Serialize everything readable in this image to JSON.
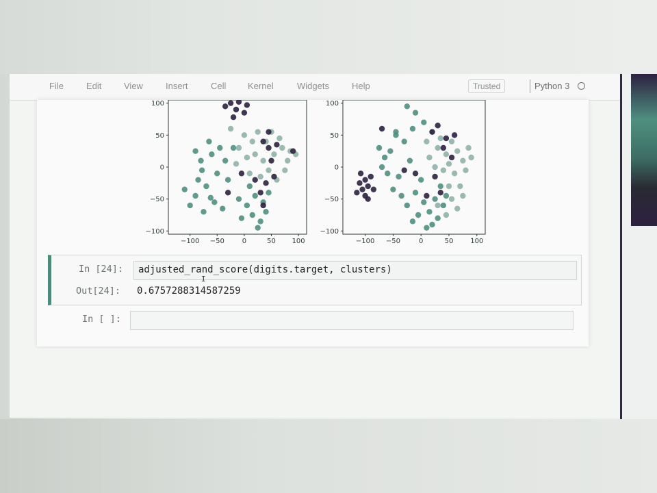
{
  "menubar": {
    "items": [
      "File",
      "Edit",
      "View",
      "Insert",
      "Cell",
      "Kernel",
      "Widgets",
      "Help"
    ],
    "trusted": "Trusted",
    "kernel": "Python 3"
  },
  "plots": {
    "y_ticks": [
      "100",
      "50",
      "0",
      "−50",
      "−100"
    ],
    "x_ticks": [
      "−100",
      "−50",
      "0",
      "50",
      "100"
    ],
    "colors": {
      "teal": "#4f8f80",
      "light": "#8fb3a8",
      "dark": "#2c2140"
    }
  },
  "cell_24": {
    "in_prompt": "In [24]:",
    "code": "adjusted_rand_score(digits.target, clusters)",
    "out_prompt": "Out[24]:",
    "output": "0.6757288314587259"
  },
  "cell_empty": {
    "in_prompt": "In [ ]:"
  },
  "chart_data": [
    {
      "type": "scatter",
      "title": "",
      "xlabel": "",
      "ylabel": "",
      "xlim": [
        -140,
        115
      ],
      "ylim": [
        -105,
        105
      ],
      "grid": false,
      "series": [
        {
          "color": "#4f8f80",
          "points": [
            [
              -90,
              -45
            ],
            [
              -85,
              -20
            ],
            [
              -80,
              10
            ],
            [
              -70,
              -30
            ],
            [
              -60,
              20
            ],
            [
              -55,
              -55
            ],
            [
              -100,
              -60
            ],
            [
              -75,
              -70
            ],
            [
              -65,
              40
            ],
            [
              -50,
              -10
            ],
            [
              -90,
              25
            ],
            [
              -40,
              -65
            ],
            [
              -110,
              -35
            ],
            [
              -45,
              30
            ],
            [
              -78,
              -5
            ],
            [
              -62,
              -48
            ],
            [
              -30,
              -20
            ],
            [
              -35,
              10
            ],
            [
              -20,
              30
            ],
            [
              5,
              -60
            ],
            [
              15,
              -75
            ],
            [
              30,
              -85
            ],
            [
              20,
              -45
            ],
            [
              40,
              -70
            ],
            [
              -5,
              -80
            ],
            [
              10,
              -30
            ],
            [
              45,
              -40
            ],
            [
              25,
              -95
            ],
            [
              35,
              -55
            ],
            [
              -10,
              -50
            ]
          ]
        },
        {
          "color": "#8fb3a8",
          "points": [
            [
              10,
              -10
            ],
            [
              20,
              20
            ],
            [
              35,
              10
            ],
            [
              45,
              -5
            ],
            [
              55,
              20
            ],
            [
              70,
              30
            ],
            [
              85,
              25
            ],
            [
              60,
              -20
            ],
            [
              40,
              40
            ],
            [
              25,
              55
            ],
            [
              15,
              40
            ],
            [
              0,
              50
            ],
            [
              -10,
              30
            ],
            [
              -25,
              60
            ],
            [
              -15,
              5
            ],
            [
              30,
              -15
            ],
            [
              80,
              10
            ],
            [
              95,
              20
            ],
            [
              65,
              45
            ],
            [
              5,
              15
            ],
            [
              50,
              55
            ],
            [
              75,
              -5
            ]
          ]
        },
        {
          "color": "#2c2140",
          "points": [
            [
              -35,
              95
            ],
            [
              -25,
              100
            ],
            [
              -15,
              90
            ],
            [
              0,
              85
            ],
            [
              -20,
              78
            ],
            [
              -10,
              102
            ],
            [
              5,
              97
            ],
            [
              35,
              40
            ],
            [
              45,
              30
            ],
            [
              50,
              10
            ],
            [
              40,
              -25
            ],
            [
              30,
              -40
            ],
            [
              55,
              -15
            ],
            [
              -5,
              -10
            ],
            [
              20,
              -20
            ],
            [
              45,
              55
            ],
            [
              90,
              25
            ],
            [
              35,
              -60
            ],
            [
              -30,
              -40
            ],
            [
              60,
              35
            ]
          ]
        }
      ]
    },
    {
      "type": "scatter",
      "title": "",
      "xlabel": "",
      "ylabel": "",
      "xlim": [
        -140,
        115
      ],
      "ylim": [
        -105,
        105
      ],
      "grid": false,
      "series": [
        {
          "color": "#4f8f80",
          "points": [
            [
              -70,
              0
            ],
            [
              -55,
              25
            ],
            [
              -45,
              50
            ],
            [
              -30,
              40
            ],
            [
              -20,
              10
            ],
            [
              -60,
              -10
            ],
            [
              -40,
              -15
            ],
            [
              -75,
              30
            ],
            [
              -50,
              -35
            ],
            [
              -35,
              -45
            ],
            [
              -25,
              -60
            ],
            [
              -10,
              -40
            ],
            [
              0,
              -20
            ],
            [
              5,
              -55
            ],
            [
              15,
              -70
            ],
            [
              20,
              -90
            ],
            [
              30,
              -80
            ],
            [
              40,
              -60
            ],
            [
              -5,
              -75
            ],
            [
              25,
              -50
            ],
            [
              10,
              -95
            ],
            [
              35,
              -30
            ],
            [
              -15,
              -85
            ],
            [
              45,
              -45
            ],
            [
              -45,
              55
            ],
            [
              -65,
              15
            ],
            [
              -25,
              95
            ],
            [
              -10,
              85
            ],
            [
              5,
              70
            ],
            [
              -15,
              60
            ]
          ]
        },
        {
          "color": "#8fb3a8",
          "points": [
            [
              15,
              15
            ],
            [
              30,
              30
            ],
            [
              45,
              20
            ],
            [
              55,
              40
            ],
            [
              65,
              25
            ],
            [
              75,
              10
            ],
            [
              85,
              30
            ],
            [
              60,
              -10
            ],
            [
              70,
              -30
            ],
            [
              40,
              -5
            ],
            [
              25,
              0
            ],
            [
              50,
              5
            ],
            [
              80,
              -5
            ],
            [
              90,
              15
            ],
            [
              35,
              45
            ],
            [
              20,
              55
            ],
            [
              10,
              40
            ],
            [
              55,
              -50
            ],
            [
              75,
              -45
            ],
            [
              65,
              -65
            ],
            [
              45,
              -75
            ],
            [
              30,
              -60
            ],
            [
              50,
              -30
            ]
          ]
        },
        {
          "color": "#2c2140",
          "points": [
            [
              -110,
              -25
            ],
            [
              -105,
              -35
            ],
            [
              -100,
              -20
            ],
            [
              -95,
              -30
            ],
            [
              -115,
              -40
            ],
            [
              -100,
              -45
            ],
            [
              -90,
              -15
            ],
            [
              -108,
              -10
            ],
            [
              -95,
              -50
            ],
            [
              -85,
              -35
            ],
            [
              20,
              55
            ],
            [
              30,
              65
            ],
            [
              45,
              45
            ],
            [
              40,
              30
            ],
            [
              60,
              50
            ],
            [
              -30,
              -5
            ],
            [
              -10,
              -10
            ],
            [
              25,
              -15
            ],
            [
              55,
              15
            ],
            [
              -70,
              60
            ],
            [
              10,
              -45
            ],
            [
              35,
              -40
            ]
          ]
        }
      ]
    }
  ]
}
